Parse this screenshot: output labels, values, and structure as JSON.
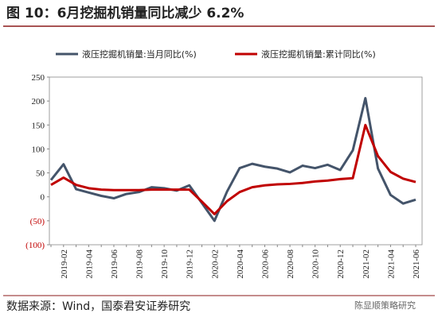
{
  "chart_data": {
    "type": "line",
    "title": "图 10：6月挖掘机销量同比减少 6.2%",
    "source": "数据来源：Wind，国泰君安证券研究",
    "watermark": "陈显顺策略研究",
    "categories": [
      null,
      "2019-02",
      null,
      "2019-04",
      null,
      "2019-06",
      null,
      "2019-08",
      null,
      "2019-10",
      null,
      "2019-12",
      null,
      "2020-02",
      null,
      "2020-04",
      null,
      "2020-06",
      null,
      "2020-08",
      null,
      "2020-10",
      null,
      "2020-12",
      null,
      "2021-02",
      null,
      "2021-04",
      null,
      "2021-06"
    ],
    "series": [
      {
        "name": "液压挖掘机销量:当月同比(%)",
        "color": "#44546a",
        "values": [
          35,
          68,
          16,
          9,
          2,
          -3,
          6,
          10,
          20,
          18,
          13,
          24,
          -13,
          -50,
          11,
          60,
          69,
          63,
          59,
          51,
          65,
          60,
          67,
          56,
          97,
          206,
          59,
          4,
          -14,
          -6
        ]
      },
      {
        "name": "液压挖掘机销量:累计同比(%)",
        "color": "#c00000",
        "values": [
          25,
          40,
          25,
          18,
          15,
          14,
          14,
          14,
          15,
          15,
          15,
          15,
          -10,
          -36,
          -9,
          10,
          20,
          24,
          26,
          27,
          29,
          32,
          34,
          37,
          39,
          150,
          85,
          52,
          38,
          31
        ]
      }
    ],
    "ylim": [
      -100,
      250
    ],
    "yticks": [
      {
        "value": -100,
        "label": "(100)"
      },
      {
        "value": -50,
        "label": "(50)"
      },
      0,
      50,
      100,
      150,
      200,
      250
    ],
    "legend": "top"
  }
}
